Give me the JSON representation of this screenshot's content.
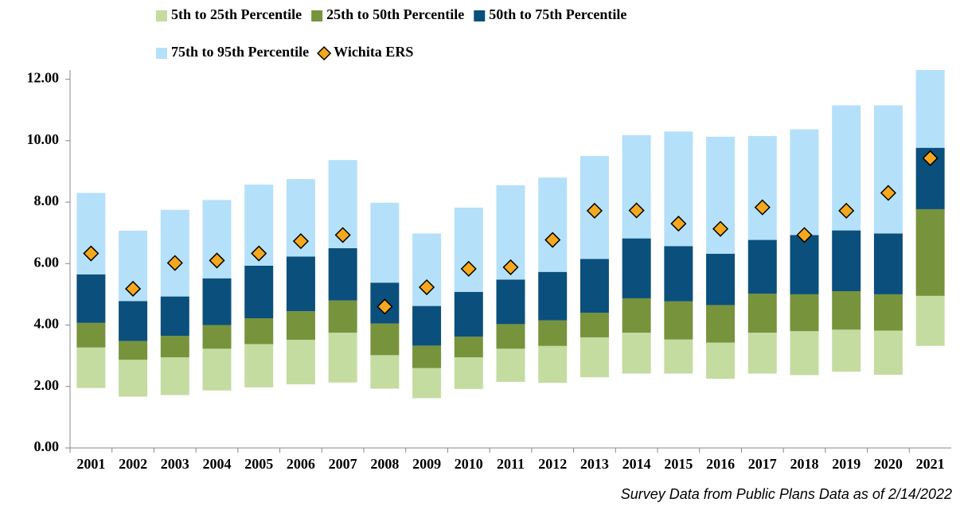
{
  "chart_data": {
    "type": "floating_bar",
    "categories": [
      "2001",
      "2002",
      "2003",
      "2004",
      "2005",
      "2006",
      "2007",
      "2008",
      "2009",
      "2010",
      "2011",
      "2012",
      "2013",
      "2014",
      "2015",
      "2016",
      "2017",
      "2018",
      "2019",
      "2020",
      "2021"
    ],
    "series": [
      {
        "name": "5th to 25th Percentile",
        "color": "#c4dca0",
        "values": [
          [
            1.95,
            3.27
          ],
          [
            1.67,
            2.87
          ],
          [
            1.72,
            2.95
          ],
          [
            1.87,
            3.23
          ],
          [
            1.97,
            3.38
          ],
          [
            2.07,
            3.52
          ],
          [
            2.13,
            3.75
          ],
          [
            1.93,
            3.02
          ],
          [
            1.62,
            2.6
          ],
          [
            1.92,
            2.95
          ],
          [
            2.15,
            3.23
          ],
          [
            2.12,
            3.32
          ],
          [
            2.3,
            3.6
          ],
          [
            2.42,
            3.75
          ],
          [
            2.42,
            3.53
          ],
          [
            2.25,
            3.43
          ],
          [
            2.42,
            3.75
          ],
          [
            2.37,
            3.8
          ],
          [
            2.48,
            3.85
          ],
          [
            2.38,
            3.82
          ],
          [
            3.32,
            4.95
          ]
        ]
      },
      {
        "name": "25th to 50th Percentile",
        "color": "#77933c",
        "values": [
          [
            3.27,
            4.07
          ],
          [
            2.87,
            3.48
          ],
          [
            2.95,
            3.65
          ],
          [
            3.23,
            4.0
          ],
          [
            3.38,
            4.22
          ],
          [
            3.52,
            4.45
          ],
          [
            3.75,
            4.8
          ],
          [
            3.02,
            4.05
          ],
          [
            2.6,
            3.33
          ],
          [
            2.95,
            3.62
          ],
          [
            3.23,
            4.03
          ],
          [
            3.32,
            4.15
          ],
          [
            3.6,
            4.4
          ],
          [
            3.75,
            4.87
          ],
          [
            3.53,
            4.77
          ],
          [
            3.43,
            4.65
          ],
          [
            3.75,
            5.02
          ],
          [
            3.8,
            5.0
          ],
          [
            3.85,
            5.1
          ],
          [
            3.82,
            5.0
          ],
          [
            4.95,
            7.77
          ]
        ]
      },
      {
        "name": "50th to 75th Percentile",
        "color": "#0b4f7c",
        "values": [
          [
            4.07,
            5.65
          ],
          [
            3.48,
            4.78
          ],
          [
            3.65,
            4.93
          ],
          [
            4.0,
            5.52
          ],
          [
            4.22,
            5.93
          ],
          [
            4.45,
            6.23
          ],
          [
            4.8,
            6.5
          ],
          [
            4.05,
            5.38
          ],
          [
            3.33,
            4.62
          ],
          [
            3.62,
            5.08
          ],
          [
            4.03,
            5.48
          ],
          [
            4.15,
            5.73
          ],
          [
            4.4,
            6.15
          ],
          [
            4.87,
            6.82
          ],
          [
            4.77,
            6.57
          ],
          [
            4.65,
            6.32
          ],
          [
            5.02,
            6.77
          ],
          [
            5.0,
            6.93
          ],
          [
            5.1,
            7.08
          ],
          [
            5.0,
            6.98
          ],
          [
            7.77,
            9.77
          ]
        ]
      },
      {
        "name": "75th to 95th Percentile",
        "color": "#b4e0fa",
        "values": [
          [
            5.65,
            8.3
          ],
          [
            4.78,
            7.07
          ],
          [
            4.93,
            7.75
          ],
          [
            5.52,
            8.07
          ],
          [
            5.93,
            8.57
          ],
          [
            6.23,
            8.75
          ],
          [
            6.5,
            9.37
          ],
          [
            5.38,
            7.98
          ],
          [
            4.62,
            6.98
          ],
          [
            5.08,
            7.82
          ],
          [
            5.48,
            8.55
          ],
          [
            5.73,
            8.8
          ],
          [
            6.15,
            9.5
          ],
          [
            6.82,
            10.18
          ],
          [
            6.57,
            10.3
          ],
          [
            6.32,
            10.13
          ],
          [
            6.77,
            10.15
          ],
          [
            6.93,
            10.37
          ],
          [
            7.08,
            11.15
          ],
          [
            6.98,
            11.15
          ],
          [
            9.77,
            12.3
          ]
        ]
      },
      {
        "name": "Wichita ERS",
        "color": "#f5a81c",
        "marker": "diamond",
        "values": [
          6.33,
          5.18,
          6.02,
          6.1,
          6.33,
          6.73,
          6.93,
          4.6,
          5.23,
          5.83,
          5.88,
          6.77,
          7.72,
          7.73,
          7.3,
          7.13,
          7.83,
          6.93,
          7.72,
          8.3,
          9.43
        ]
      }
    ],
    "ylim": [
      0,
      12.3
    ],
    "yticks": [
      {
        "value": 0,
        "label": "0.00"
      },
      {
        "value": 2,
        "label": "2.00"
      },
      {
        "value": 4,
        "label": "4.00"
      },
      {
        "value": 6,
        "label": "6.00"
      },
      {
        "value": 8,
        "label": "8.00"
      },
      {
        "value": 10,
        "label": "10.00"
      },
      {
        "value": 12,
        "label": "12.00"
      }
    ],
    "grid": false,
    "footnote": "Survey Data from Public Plans Data as of 2/14/2022"
  }
}
